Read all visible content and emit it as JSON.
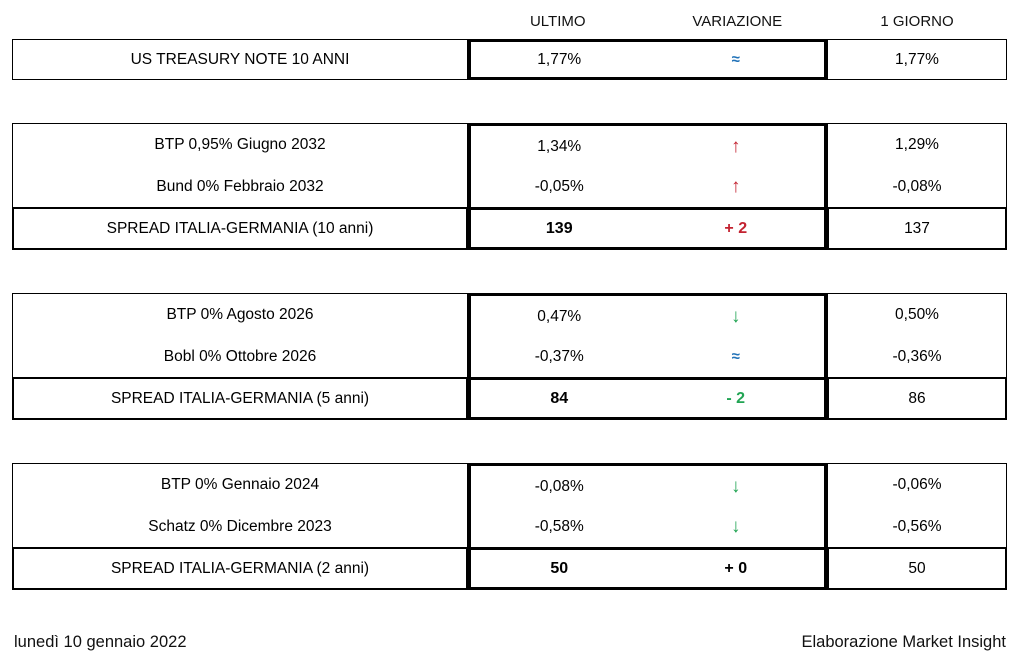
{
  "header": {
    "ultimo": "ULTIMO",
    "variazione": "VARIAZIONE",
    "giorno": "1 GIORNO"
  },
  "colors": {
    "red": "#c32230",
    "green": "#21a453",
    "blue": "#2172b8",
    "black": "#000000"
  },
  "blocks": [
    {
      "rows": [
        {
          "label": "US TREASURY NOTE 10 ANNI",
          "ultimo": "1,77%",
          "variazione": "≈",
          "var_color": "blue",
          "var_kind": "approx",
          "giorno": "1,77%"
        }
      ],
      "spread": null
    },
    {
      "rows": [
        {
          "label": "BTP 0,95% Giugno 2032",
          "ultimo": "1,34%",
          "variazione": "↑",
          "var_color": "red",
          "var_kind": "arrow",
          "giorno": "1,29%"
        },
        {
          "label": "Bund 0% Febbraio 2032",
          "ultimo": "-0,05%",
          "variazione": "↑",
          "var_color": "red",
          "var_kind": "arrow",
          "giorno": "-0,08%"
        }
      ],
      "spread": {
        "label": "SPREAD ITALIA-GERMANIA (10 anni)",
        "ultimo": "139",
        "variazione": "+ 2",
        "var_color": "red",
        "giorno": "137"
      }
    },
    {
      "rows": [
        {
          "label": "BTP 0% Agosto 2026",
          "ultimo": "0,47%",
          "variazione": "↓",
          "var_color": "green",
          "var_kind": "arrow",
          "giorno": "0,50%"
        },
        {
          "label": "Bobl 0% Ottobre 2026",
          "ultimo": "-0,37%",
          "variazione": "≈",
          "var_color": "blue",
          "var_kind": "approx",
          "giorno": "-0,36%"
        }
      ],
      "spread": {
        "label": "SPREAD ITALIA-GERMANIA (5 anni)",
        "ultimo": "84",
        "variazione": "- 2",
        "var_color": "green",
        "giorno": "86"
      }
    },
    {
      "rows": [
        {
          "label": "BTP 0% Gennaio 2024",
          "ultimo": "-0,08%",
          "variazione": "↓",
          "var_color": "green",
          "var_kind": "arrow",
          "giorno": "-0,06%"
        },
        {
          "label": "Schatz 0% Dicembre 2023",
          "ultimo": "-0,58%",
          "variazione": "↓",
          "var_color": "green",
          "var_kind": "arrow",
          "giorno": "-0,56%"
        }
      ],
      "spread": {
        "label": "SPREAD ITALIA-GERMANIA (2 anni)",
        "ultimo": "50",
        "variazione": "+ 0",
        "var_color": "black",
        "giorno": "50"
      }
    }
  ],
  "footer": {
    "date": "lunedì 10 gennaio 2022",
    "credit": "Elaborazione Market Insight"
  }
}
